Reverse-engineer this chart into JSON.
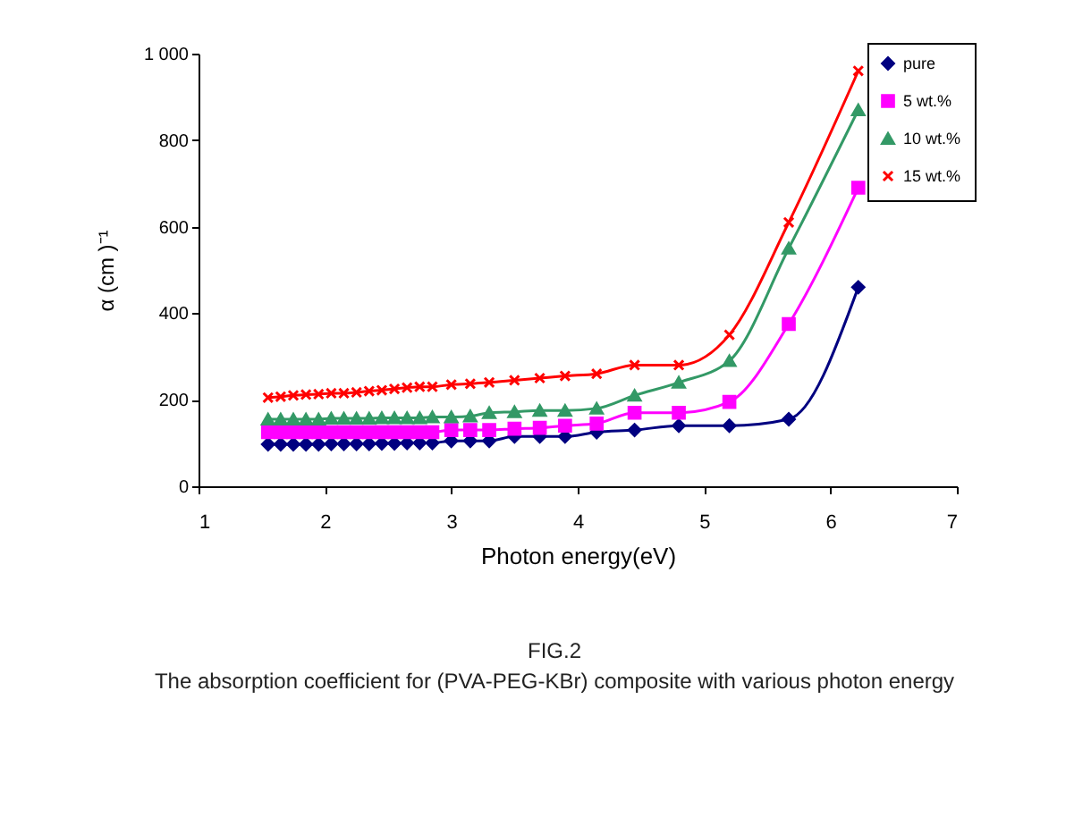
{
  "chart_data": {
    "type": "line",
    "xlabel": "Photon energy(eV)",
    "ylabel": "α (cm )⁻¹",
    "x": [
      1.55,
      1.65,
      1.75,
      1.85,
      1.95,
      2.05,
      2.15,
      2.25,
      2.35,
      2.45,
      2.55,
      2.65,
      2.75,
      2.85,
      3.0,
      3.15,
      3.3,
      3.5,
      3.7,
      3.9,
      4.15,
      4.45,
      4.8,
      5.2,
      5.67,
      6.22
    ],
    "series": [
      {
        "name": "pure",
        "color": "#000080",
        "marker": "diamond",
        "values": [
          97,
          97,
          97,
          97,
          97,
          98,
          98,
          98,
          98,
          99,
          99,
          100,
          100,
          100,
          105,
          105,
          105,
          115,
          115,
          115,
          125,
          130,
          140,
          140,
          155,
          460
        ]
      },
      {
        "name": "5 wt.%",
        "color": "#ff00ff",
        "marker": "square",
        "values": [
          125,
          125,
          125,
          125,
          125,
          125,
          125,
          125,
          125,
          125,
          125,
          125,
          125,
          125,
          130,
          130,
          130,
          133,
          135,
          140,
          145,
          170,
          170,
          195,
          375,
          690
        ]
      },
      {
        "name": "10 wt.%",
        "color": "#339966",
        "marker": "triangle",
        "values": [
          155,
          155,
          155,
          155,
          155,
          157,
          157,
          157,
          157,
          158,
          158,
          158,
          158,
          160,
          160,
          162,
          170,
          172,
          175,
          175,
          180,
          210,
          240,
          290,
          550,
          870
        ]
      },
      {
        "name": "15 wt.%",
        "color": "#ff0000",
        "marker": "cross",
        "values": [
          205,
          207,
          210,
          212,
          213,
          215,
          215,
          217,
          220,
          222,
          225,
          228,
          230,
          230,
          235,
          237,
          240,
          245,
          250,
          255,
          260,
          280,
          280,
          350,
          610,
          960
        ]
      }
    ],
    "xlim": [
      1,
      7
    ],
    "xticks": [
      1,
      2,
      3,
      4,
      5,
      6,
      7
    ],
    "ylim": [
      0,
      1000
    ],
    "yticks": [
      0,
      200,
      400,
      600,
      800,
      {
        "value": 1000,
        "label": "1 000"
      }
    ],
    "grid": false,
    "legend": "top right",
    "line_style": "solid",
    "annotations": [
      "FIG.2",
      "The absorption coefficient  for (PVA-PEG-KBr) composite with  various photon energy"
    ]
  }
}
